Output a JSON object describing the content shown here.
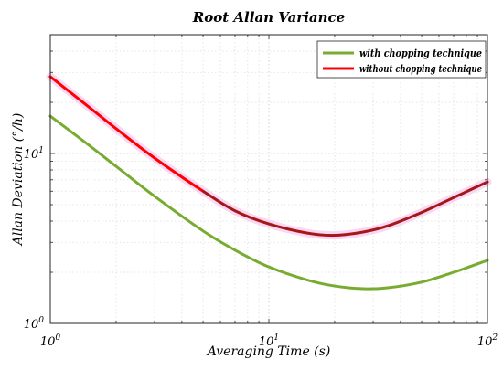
{
  "chart_data": {
    "type": "line",
    "title": "Root Allan Variance",
    "xlabel": "Averaging Time (s)",
    "ylabel": "Allan Deviation (°/h)",
    "x_scale": "log",
    "y_scale": "log",
    "xlim": [
      1,
      100
    ],
    "ylim": [
      1,
      50
    ],
    "x_ticks": [
      {
        "base": "10",
        "exp": "0",
        "value": 1
      },
      {
        "base": "10",
        "exp": "1",
        "value": 10
      },
      {
        "base": "10",
        "exp": "2",
        "value": 100
      }
    ],
    "y_ticks": [
      {
        "base": "10",
        "exp": "0",
        "value": 1
      },
      {
        "base": "10",
        "exp": "1",
        "value": 10
      }
    ],
    "grid": true,
    "legend": {
      "position": "top-right"
    },
    "series": [
      {
        "name": "with chopping technique",
        "color": "#77ac30",
        "x": [
          1,
          1.5,
          2,
          3,
          5,
          7,
          10,
          15,
          20,
          27,
          35,
          50,
          70,
          100
        ],
        "y": [
          16.6,
          11.2,
          8.4,
          5.6,
          3.5,
          2.7,
          2.15,
          1.8,
          1.66,
          1.6,
          1.62,
          1.75,
          2.0,
          2.35
        ]
      },
      {
        "name": "without chopping technique",
        "color": "#ff0000",
        "x": [
          1,
          1.5,
          2,
          3,
          5,
          7,
          10,
          15,
          20,
          27,
          35,
          50,
          70,
          100
        ],
        "y": [
          28.3,
          18.8,
          14.0,
          9.4,
          6.0,
          4.6,
          3.85,
          3.4,
          3.3,
          3.45,
          3.75,
          4.5,
          5.5,
          6.8
        ]
      }
    ]
  }
}
